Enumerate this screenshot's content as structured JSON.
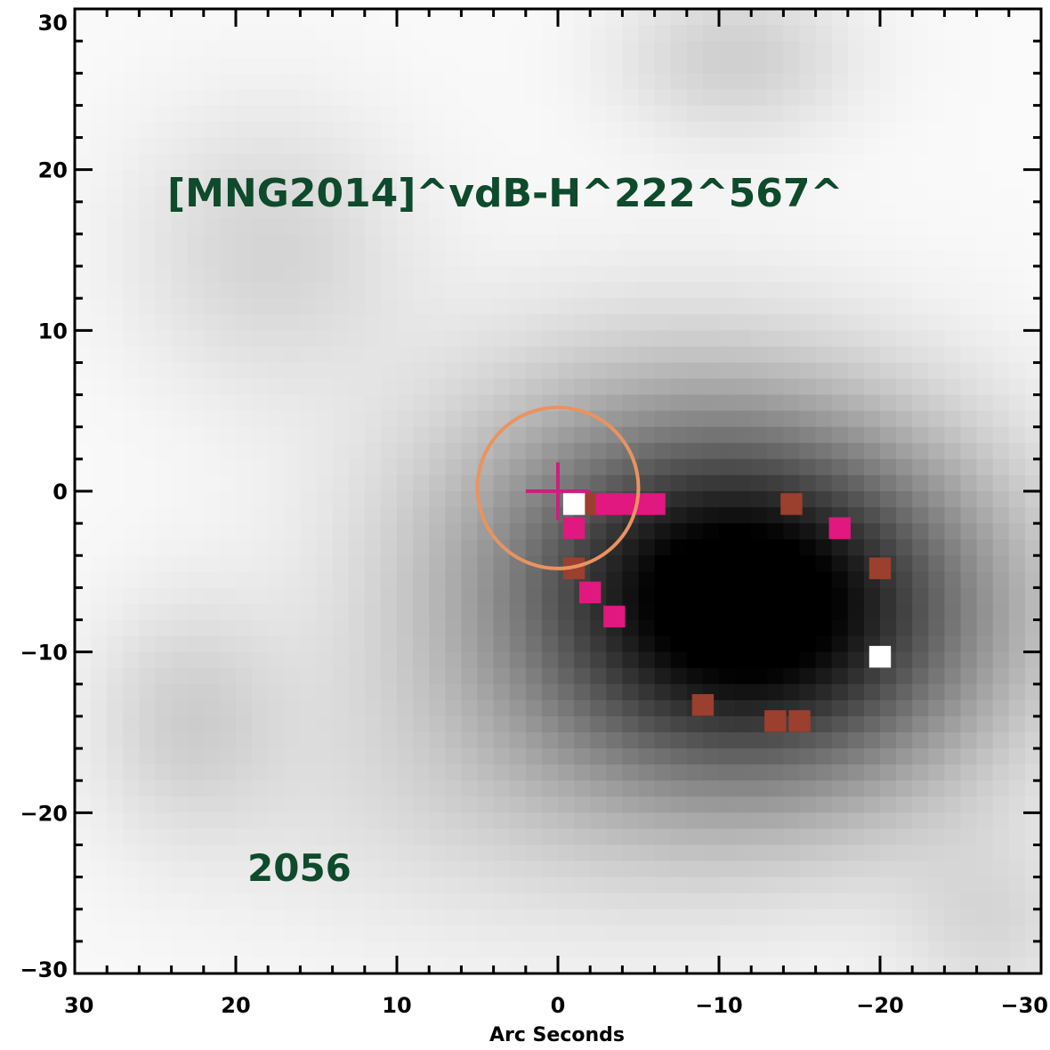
{
  "chart_data": {
    "type": "heatmap",
    "colormap": "grayscale (dark = high)",
    "xlabel": "Arc Seconds",
    "ylabel": "",
    "xlim": [
      30,
      -30
    ],
    "ylim": [
      -30,
      30
    ],
    "x_ticks": [
      30,
      20,
      10,
      0,
      -10,
      -20,
      -30
    ],
    "x_tick_labels": [
      "30",
      "20",
      "10",
      "0",
      "−10",
      "−20",
      "−30"
    ],
    "y_ticks": [
      30,
      20,
      10,
      0,
      -10,
      -20,
      -30
    ],
    "y_tick_labels": [
      "30",
      "20",
      "10",
      "0",
      "−10",
      "−20",
      "−30"
    ],
    "grid": false,
    "annotations": {
      "object_name": "[MNG2014]^vdB-H^222^567^",
      "id_label": "2056",
      "text_color": "#0e4a2c"
    },
    "intensity_sources": [
      {
        "x": -13.0,
        "y": -7.5,
        "amplitude": 0.95,
        "sigma_x": 9.5,
        "sigma_y": 7.5
      },
      {
        "x": -5.0,
        "y": -3.0,
        "amplitude": 0.3,
        "sigma_x": 10.0,
        "sigma_y": 8.0
      },
      {
        "x": 2.0,
        "y": -18.0,
        "amplitude": 0.1,
        "sigma_x": 14.0,
        "sigma_y": 7.0
      },
      {
        "x": 18.0,
        "y": 15.0,
        "amplitude": 0.12,
        "sigma_x": 6.0,
        "sigma_y": 6.0
      },
      {
        "x": -11.0,
        "y": 27.0,
        "amplitude": 0.14,
        "sigma_x": 5.0,
        "sigma_y": 3.5
      },
      {
        "x": 23.0,
        "y": -14.0,
        "amplitude": 0.12,
        "sigma_x": 4.0,
        "sigma_y": 5.0
      },
      {
        "x": -27.0,
        "y": -27.0,
        "amplitude": 0.1,
        "sigma_x": 4.0,
        "sigma_y": 4.0
      }
    ],
    "markers": {
      "circle": {
        "x": 0.0,
        "y": 0.2,
        "radius": 5.0,
        "color": "#ea9360"
      },
      "cross": {
        "x": 0.0,
        "y": 0.0,
        "half_size": 2.0,
        "color": "#cc1f7e"
      },
      "magenta_pixels": {
        "color": "#e0187f",
        "points": [
          [
            -3,
            -0.8
          ],
          [
            -4,
            -0.8
          ],
          [
            -5,
            -0.8
          ],
          [
            -6,
            -0.8
          ],
          [
            -1,
            -2.3
          ],
          [
            -2,
            -6.3
          ],
          [
            -3.5,
            -7.8
          ],
          [
            -17.5,
            -2.3
          ]
        ]
      },
      "brown_pixels": {
        "color": "#9b3f2e",
        "points": [
          [
            -2,
            -0.8
          ],
          [
            -14.5,
            -0.8
          ],
          [
            -1,
            -4.8
          ],
          [
            -20,
            -4.8
          ],
          [
            -9,
            -13.3
          ],
          [
            -13.5,
            -14.3
          ],
          [
            -15,
            -14.3
          ]
        ]
      },
      "white_pixels": {
        "color": "#ffffff",
        "points": [
          [
            -1,
            -0.8
          ],
          [
            -20,
            -10.3
          ]
        ]
      }
    }
  }
}
